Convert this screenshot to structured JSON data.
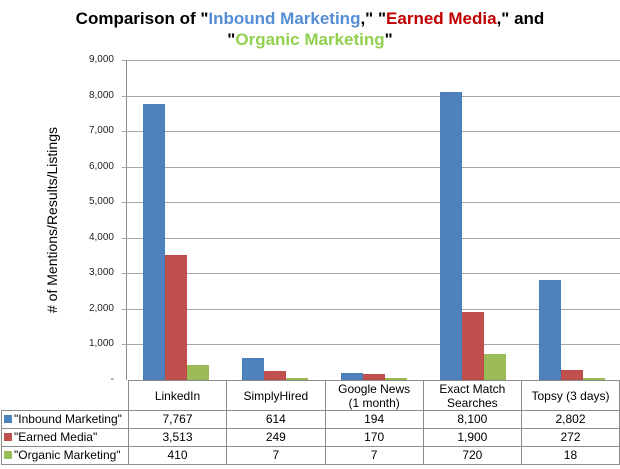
{
  "chart_data": {
    "type": "bar",
    "title": "Comparison of \"Inbound Marketing,\" \"Earned Media,\" and \"Organic Marketing\"",
    "title_parts": {
      "p1": "Comparison of \"",
      "p2": "Inbound Marketing",
      "p3": ",\" \"",
      "p4": "Earned Media",
      "p5": ",\" and",
      "p6": "\"",
      "p7": "Organic Marketing",
      "p8": "\""
    },
    "xlabel": "",
    "ylabel": "# of Mentions/Results/Listings",
    "ylim": [
      0,
      9000
    ],
    "yticks": [
      "-",
      "1,000",
      "2,000",
      "3,000",
      "4,000",
      "5,000",
      "6,000",
      "7,000",
      "8,000",
      "9,000"
    ],
    "grid": true,
    "legend_position": "data-table",
    "categories": [
      "LinkedIn",
      "SimplyHired",
      "Google News (1 month)",
      "Exact Match Searches",
      "Topsy (3 days)"
    ],
    "category_lines": [
      [
        "LinkedIn",
        ""
      ],
      [
        "SimplyHired",
        ""
      ],
      [
        "Google News",
        "(1 month)"
      ],
      [
        "Exact Match",
        "Searches"
      ],
      [
        "Topsy (3 days)",
        ""
      ]
    ],
    "series": [
      {
        "name": "\"Inbound Marketing\"",
        "color": "#4f81bd",
        "values": [
          7767,
          614,
          194,
          8100,
          2802
        ],
        "labels": [
          "7,767",
          "614",
          "194",
          "8,100",
          "2,802"
        ]
      },
      {
        "name": "\"Earned Media\"",
        "color": "#c0504d",
        "values": [
          3513,
          249,
          170,
          1900,
          272
        ],
        "labels": [
          "3,513",
          "249",
          "170",
          "1,900",
          "272"
        ]
      },
      {
        "name": "\"Organic Marketing\"",
        "color": "#9bbb59",
        "values": [
          410,
          7,
          7,
          720,
          18
        ],
        "labels": [
          "410",
          "7",
          "7",
          "720",
          "18"
        ]
      }
    ]
  }
}
